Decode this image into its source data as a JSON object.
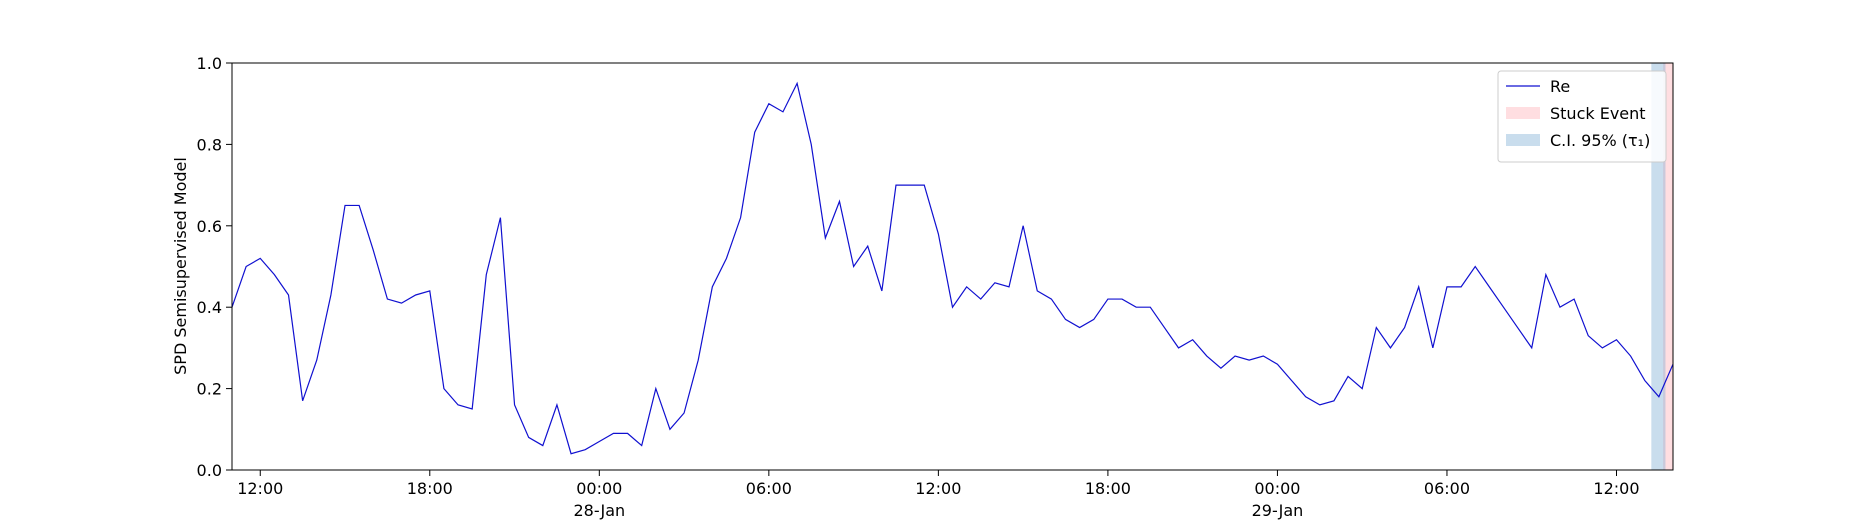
{
  "chart_data": {
    "type": "line",
    "ylabel": "SPD Semisupervised Model",
    "x": [
      "1900-01-27 11:00",
      "1900-01-27 11:30",
      "1900-01-27 12:00",
      "1900-01-27 12:30",
      "1900-01-27 13:00",
      "1900-01-27 13:30",
      "1900-01-27 14:00",
      "1900-01-27 14:30",
      "1900-01-27 15:00",
      "1900-01-27 15:30",
      "1900-01-27 16:00",
      "1900-01-27 16:30",
      "1900-01-27 17:00",
      "1900-01-27 17:30",
      "1900-01-27 18:00",
      "1900-01-27 18:30",
      "1900-01-27 19:00",
      "1900-01-27 19:30",
      "1900-01-27 20:00",
      "1900-01-27 20:30",
      "1900-01-27 21:00",
      "1900-01-27 21:30",
      "1900-01-27 22:00",
      "1900-01-27 22:30",
      "1900-01-27 23:00",
      "1900-01-27 23:30",
      "1900-01-28 00:00",
      "1900-01-28 00:30",
      "1900-01-28 01:00",
      "1900-01-28 01:30",
      "1900-01-28 02:00",
      "1900-01-28 02:30",
      "1900-01-28 03:00",
      "1900-01-28 03:30",
      "1900-01-28 04:00",
      "1900-01-28 04:30",
      "1900-01-28 05:00",
      "1900-01-28 05:30",
      "1900-01-28 06:00",
      "1900-01-28 06:30",
      "1900-01-28 07:00",
      "1900-01-28 07:30",
      "1900-01-28 08:00",
      "1900-01-28 08:30",
      "1900-01-28 09:00",
      "1900-01-28 09:30",
      "1900-01-28 10:00",
      "1900-01-28 10:30",
      "1900-01-28 11:00",
      "1900-01-28 11:30",
      "1900-01-28 12:00",
      "1900-01-28 12:30",
      "1900-01-28 13:00",
      "1900-01-28 13:30",
      "1900-01-28 14:00",
      "1900-01-28 14:30",
      "1900-01-28 15:00",
      "1900-01-28 15:30",
      "1900-01-28 16:00",
      "1900-01-28 16:30",
      "1900-01-28 17:00",
      "1900-01-28 17:30",
      "1900-01-28 18:00",
      "1900-01-28 18:30",
      "1900-01-28 19:00",
      "1900-01-28 19:30",
      "1900-01-28 20:00",
      "1900-01-28 20:30",
      "1900-01-28 21:00",
      "1900-01-28 21:30",
      "1900-01-28 22:00",
      "1900-01-28 22:30",
      "1900-01-28 23:00",
      "1900-01-28 23:30",
      "1900-01-29 00:00",
      "1900-01-29 00:30",
      "1900-01-29 01:00",
      "1900-01-29 01:30",
      "1900-01-29 02:00",
      "1900-01-29 02:30",
      "1900-01-29 03:00",
      "1900-01-29 03:30",
      "1900-01-29 04:00",
      "1900-01-29 04:30",
      "1900-01-29 05:00",
      "1900-01-29 05:30",
      "1900-01-29 06:00",
      "1900-01-29 06:30",
      "1900-01-29 07:00",
      "1900-01-29 07:30",
      "1900-01-29 08:00",
      "1900-01-29 08:30",
      "1900-01-29 09:00",
      "1900-01-29 09:30",
      "1900-01-29 10:00",
      "1900-01-29 10:30",
      "1900-01-29 11:00",
      "1900-01-29 11:30",
      "1900-01-29 12:00",
      "1900-01-29 12:30",
      "1900-01-29 13:00",
      "1900-01-29 13:30",
      "1900-01-29 14:00"
    ],
    "series": [
      {
        "name": "Re",
        "color": "#1010d0",
        "values": [
          0.4,
          0.5,
          0.52,
          0.48,
          0.43,
          0.17,
          0.27,
          0.43,
          0.65,
          0.65,
          0.54,
          0.42,
          0.41,
          0.43,
          0.44,
          0.2,
          0.16,
          0.15,
          0.48,
          0.62,
          0.16,
          0.08,
          0.06,
          0.16,
          0.04,
          0.05,
          0.07,
          0.09,
          0.09,
          0.06,
          0.2,
          0.1,
          0.14,
          0.27,
          0.45,
          0.52,
          0.62,
          0.83,
          0.9,
          0.88,
          0.95,
          0.8,
          0.57,
          0.66,
          0.5,
          0.55,
          0.44,
          0.7,
          0.7,
          0.7,
          0.58,
          0.4,
          0.45,
          0.42,
          0.46,
          0.45,
          0.6,
          0.44,
          0.42,
          0.37,
          0.35,
          0.37,
          0.42,
          0.42,
          0.4,
          0.4,
          0.35,
          0.3,
          0.32,
          0.28,
          0.25,
          0.28,
          0.27,
          0.28,
          0.26,
          0.22,
          0.18,
          0.16,
          0.17,
          0.23,
          0.2,
          0.35,
          0.3,
          0.35,
          0.45,
          0.3,
          0.45,
          0.45,
          0.5,
          0.45,
          0.4,
          0.35,
          0.3,
          0.48,
          0.4,
          0.42,
          0.33,
          0.3,
          0.32,
          0.28,
          0.22,
          0.18,
          0.26
        ]
      }
    ],
    "spans": [
      {
        "name": "Stuck Event",
        "color": "rgba(255,160,170,0.35)",
        "x": [
          "1900-01-29 13:39",
          "1900-01-29 14:00"
        ]
      },
      {
        "name": "C.I. 95% (τ₁)",
        "color": "rgba(120,170,210,0.4)",
        "x": [
          "1900-01-29 13:14",
          "1900-01-29 13:44"
        ]
      }
    ],
    "xlim": [
      "1900-01-27 11:00",
      "1900-01-29 14:00"
    ],
    "xticks": [
      {
        "value": "1900-01-27 12:00",
        "label": "12:00"
      },
      {
        "value": "1900-01-27 18:00",
        "label": "18:00"
      },
      {
        "value": "1900-01-28 00:00",
        "label": "00:00\n28-Jan\n1900"
      },
      {
        "value": "1900-01-28 06:00",
        "label": "06:00"
      },
      {
        "value": "1900-01-28 12:00",
        "label": "12:00"
      },
      {
        "value": "1900-01-28 18:00",
        "label": "18:00"
      },
      {
        "value": "1900-01-29 00:00",
        "label": "00:00\n29-Jan"
      },
      {
        "value": "1900-01-29 06:00",
        "label": "06:00"
      },
      {
        "value": "1900-01-29 12:00",
        "label": "12:00"
      }
    ],
    "ylim": [
      0,
      1
    ],
    "yticks": [
      {
        "value": 0,
        "label": "0.0"
      },
      0.2,
      0.4,
      0.6,
      0.8,
      {
        "value": 1,
        "label": "1.0"
      }
    ],
    "legend": "upper right"
  }
}
